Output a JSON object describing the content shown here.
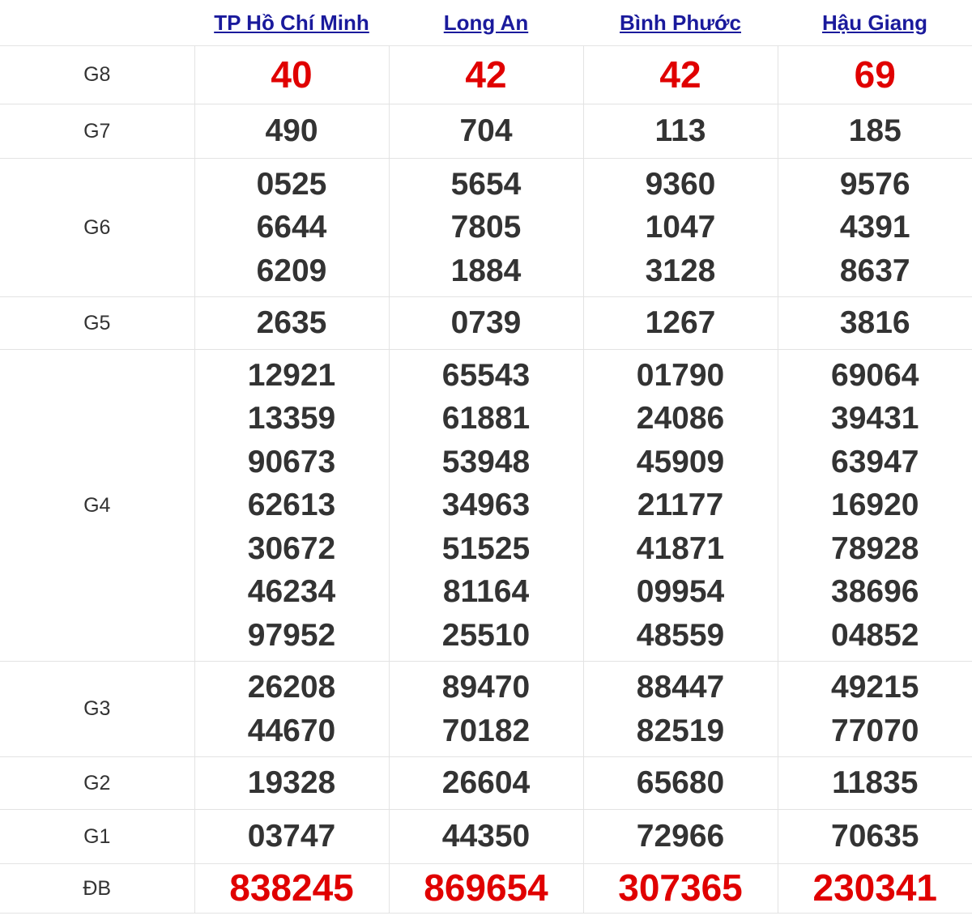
{
  "provinces": [
    "TP Hồ Chí Minh",
    "Long An",
    "Bình Phước",
    "Hậu Giang"
  ],
  "prizes": [
    {
      "label": "G8",
      "highlight": true,
      "values": [
        [
          "40"
        ],
        [
          "42"
        ],
        [
          "42"
        ],
        [
          "69"
        ]
      ]
    },
    {
      "label": "G7",
      "values": [
        [
          "490"
        ],
        [
          "704"
        ],
        [
          "113"
        ],
        [
          "185"
        ]
      ]
    },
    {
      "label": "G6",
      "values": [
        [
          "0525",
          "6644",
          "6209"
        ],
        [
          "5654",
          "7805",
          "1884"
        ],
        [
          "9360",
          "1047",
          "3128"
        ],
        [
          "9576",
          "4391",
          "8637"
        ]
      ]
    },
    {
      "label": "G5",
      "values": [
        [
          "2635"
        ],
        [
          "0739"
        ],
        [
          "1267"
        ],
        [
          "3816"
        ]
      ]
    },
    {
      "label": "G4",
      "values": [
        [
          "12921",
          "13359",
          "90673",
          "62613",
          "30672",
          "46234",
          "97952"
        ],
        [
          "65543",
          "61881",
          "53948",
          "34963",
          "51525",
          "81164",
          "25510"
        ],
        [
          "01790",
          "24086",
          "45909",
          "21177",
          "41871",
          "09954",
          "48559"
        ],
        [
          "69064",
          "39431",
          "63947",
          "16920",
          "78928",
          "38696",
          "04852"
        ]
      ]
    },
    {
      "label": "G3",
      "values": [
        [
          "26208",
          "44670"
        ],
        [
          "89470",
          "70182"
        ],
        [
          "88447",
          "82519"
        ],
        [
          "49215",
          "77070"
        ]
      ]
    },
    {
      "label": "G2",
      "values": [
        [
          "19328"
        ],
        [
          "26604"
        ],
        [
          "65680"
        ],
        [
          "11835"
        ]
      ]
    },
    {
      "label": "G1",
      "values": [
        [
          "03747"
        ],
        [
          "44350"
        ],
        [
          "72966"
        ],
        [
          "70635"
        ]
      ]
    },
    {
      "label": "ĐB",
      "highlight": true,
      "values": [
        [
          "838245"
        ],
        [
          "869654"
        ],
        [
          "307365"
        ],
        [
          "230341"
        ]
      ]
    }
  ],
  "colors": {
    "highlight": "#e00000",
    "link": "#1a1a9c",
    "text": "#333333"
  }
}
